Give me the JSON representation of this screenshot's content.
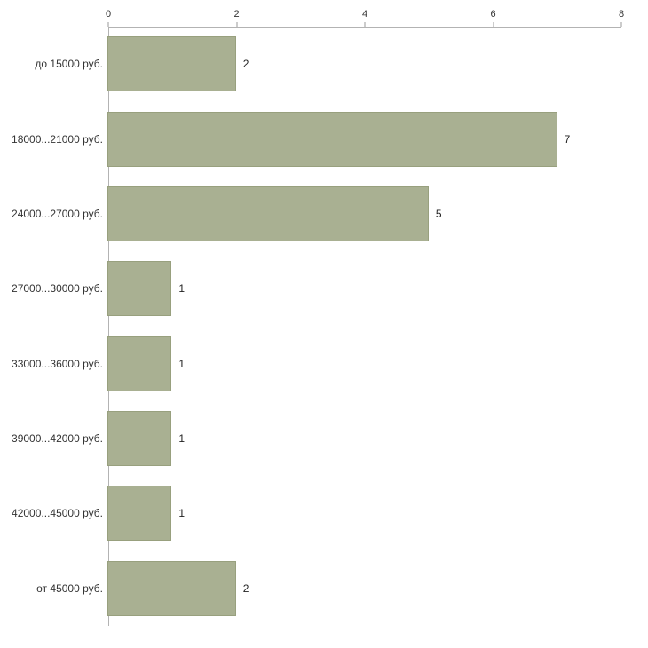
{
  "chart_data": {
    "type": "bar",
    "orientation": "horizontal",
    "title": "",
    "xlabel": "",
    "ylabel": "",
    "xlim": [
      0,
      8
    ],
    "x_ticks": [
      "0",
      "2",
      "4",
      "6",
      "8"
    ],
    "x_tick_values": [
      0,
      2,
      4,
      6,
      8
    ],
    "grid": false,
    "legend": false,
    "bar_color": "#a9b092",
    "bar_border_color": "#98a07e",
    "axis_color": "#b3b3b3",
    "categories": [
      "до 15000 руб.",
      "18000...21000 руб.",
      "24000...27000 руб.",
      "27000...30000 руб.",
      "33000...36000 руб.",
      "39000...42000 руб.",
      "42000...45000 руб.",
      "от 45000 руб."
    ],
    "values": [
      2,
      7,
      5,
      1,
      1,
      1,
      1,
      2
    ],
    "value_labels": [
      "2",
      "7",
      "5",
      "1",
      "1",
      "1",
      "1",
      "2"
    ]
  }
}
